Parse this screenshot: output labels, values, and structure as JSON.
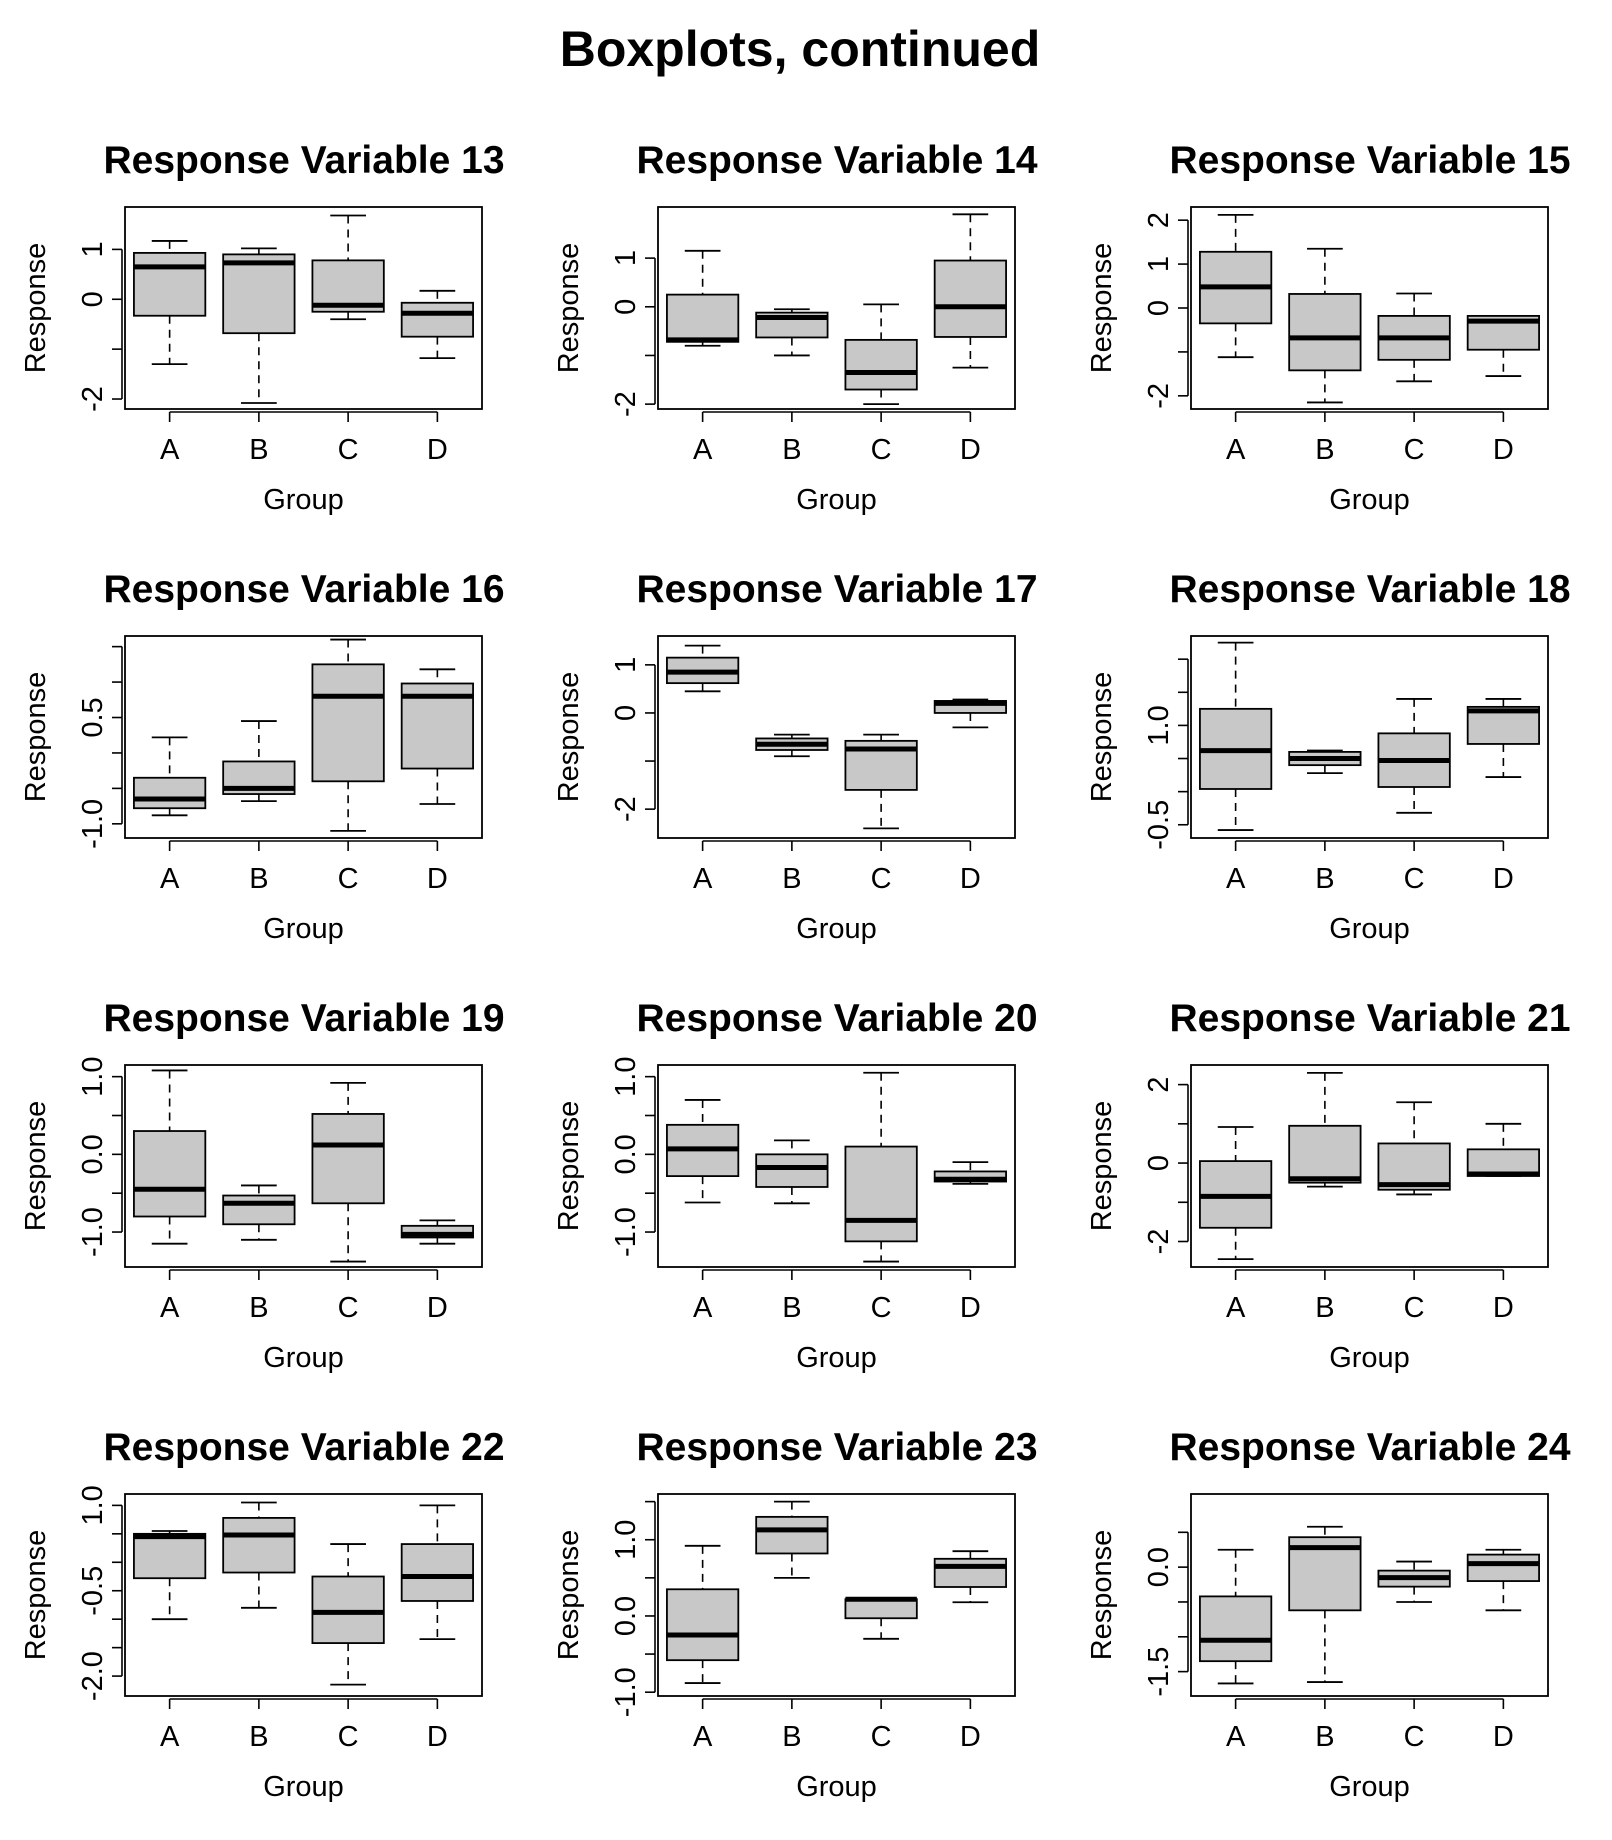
{
  "title": "Boxplots, continued",
  "chart_data": [
    {
      "type": "boxplot",
      "title": "Response Variable 13",
      "xlabel": "Group",
      "ylabel": "Response",
      "categories": [
        "A",
        "B",
        "C",
        "D"
      ],
      "ylim": [
        -2.2,
        1.85
      ],
      "yticks": [
        -2,
        -1,
        0,
        1
      ],
      "ytick_labels": [
        "-2",
        "",
        "0",
        "1"
      ],
      "boxes": [
        {
          "group": "A",
          "min": -1.3,
          "q1": -0.33,
          "median": 0.65,
          "q3": 0.93,
          "max": 1.17
        },
        {
          "group": "B",
          "min": -2.08,
          "q1": -0.68,
          "median": 0.73,
          "q3": 0.9,
          "max": 1.02
        },
        {
          "group": "C",
          "min": -0.4,
          "q1": -0.25,
          "median": -0.12,
          "q3": 0.78,
          "max": 1.68
        },
        {
          "group": "D",
          "min": -1.18,
          "q1": -0.75,
          "median": -0.28,
          "q3": -0.07,
          "max": 0.17
        }
      ]
    },
    {
      "type": "boxplot",
      "title": "Response Variable 14",
      "xlabel": "Group",
      "ylabel": "Response",
      "categories": [
        "A",
        "B",
        "C",
        "D"
      ],
      "ylim": [
        -2.1,
        2.05
      ],
      "yticks": [
        -2,
        -1,
        0,
        1
      ],
      "ytick_labels": [
        "-2",
        "",
        "0",
        "1"
      ],
      "boxes": [
        {
          "group": "A",
          "min": -0.8,
          "q1": -0.72,
          "median": -0.68,
          "q3": 0.25,
          "max": 1.15
        },
        {
          "group": "B",
          "min": -1.0,
          "q1": -0.63,
          "median": -0.22,
          "q3": -0.12,
          "max": -0.05
        },
        {
          "group": "C",
          "min": -2.0,
          "q1": -1.7,
          "median": -1.35,
          "q3": -0.68,
          "max": 0.05
        },
        {
          "group": "D",
          "min": -1.25,
          "q1": -0.62,
          "median": 0.0,
          "q3": 0.95,
          "max": 1.9
        }
      ]
    },
    {
      "type": "boxplot",
      "title": "Response Variable 15",
      "xlabel": "Group",
      "ylabel": "Response",
      "categories": [
        "A",
        "B",
        "C",
        "D"
      ],
      "ylim": [
        -2.3,
        2.3
      ],
      "yticks": [
        -2,
        -1,
        0,
        1,
        2
      ],
      "ytick_labels": [
        "-2",
        "",
        "0",
        "1",
        "2"
      ],
      "boxes": [
        {
          "group": "A",
          "min": -1.12,
          "q1": -0.35,
          "median": 0.48,
          "q3": 1.28,
          "max": 2.12
        },
        {
          "group": "B",
          "min": -2.15,
          "q1": -1.42,
          "median": -0.68,
          "q3": 0.32,
          "max": 1.35
        },
        {
          "group": "C",
          "min": -1.67,
          "q1": -1.18,
          "median": -0.68,
          "q3": -0.18,
          "max": 0.33
        },
        {
          "group": "D",
          "min": -1.55,
          "q1": -0.95,
          "median": -0.3,
          "q3": -0.18,
          "max": -0.18
        }
      ]
    },
    {
      "type": "boxplot",
      "title": "Response Variable 16",
      "xlabel": "Group",
      "ylabel": "Response",
      "categories": [
        "A",
        "B",
        "C",
        "D"
      ],
      "ylim": [
        -1.2,
        1.65
      ],
      "yticks": [
        -1.0,
        -0.5,
        0.0,
        0.5,
        1.0,
        1.5
      ],
      "ytick_labels": [
        "-1.0",
        "",
        "",
        "0.5",
        "",
        ""
      ],
      "boxes": [
        {
          "group": "A",
          "min": -0.88,
          "q1": -0.78,
          "median": -0.65,
          "q3": -0.35,
          "max": 0.22
        },
        {
          "group": "B",
          "min": -0.68,
          "q1": -0.58,
          "median": -0.5,
          "q3": -0.12,
          "max": 0.45
        },
        {
          "group": "C",
          "min": -1.1,
          "q1": -0.4,
          "median": 0.8,
          "q3": 1.25,
          "max": 1.6
        },
        {
          "group": "D",
          "min": -0.72,
          "q1": -0.22,
          "median": 0.8,
          "q3": 0.98,
          "max": 1.18
        }
      ]
    },
    {
      "type": "boxplot",
      "title": "Response Variable 17",
      "xlabel": "Group",
      "ylabel": "Response",
      "categories": [
        "A",
        "B",
        "C",
        "D"
      ],
      "ylim": [
        -2.6,
        1.6
      ],
      "yticks": [
        -2,
        -1,
        0,
        1
      ],
      "ytick_labels": [
        "-2",
        "",
        "0",
        "1"
      ],
      "boxes": [
        {
          "group": "A",
          "min": 0.45,
          "q1": 0.62,
          "median": 0.85,
          "q3": 1.15,
          "max": 1.4
        },
        {
          "group": "B",
          "min": -0.9,
          "q1": -0.77,
          "median": -0.65,
          "q3": -0.53,
          "max": -0.45
        },
        {
          "group": "C",
          "min": -2.4,
          "q1": -1.6,
          "median": -0.75,
          "q3": -0.58,
          "max": -0.45
        },
        {
          "group": "D",
          "min": -0.3,
          "q1": 0.0,
          "median": 0.2,
          "q3": 0.25,
          "max": 0.28
        }
      ]
    },
    {
      "type": "boxplot",
      "title": "Response Variable 18",
      "xlabel": "Group",
      "ylabel": "Response",
      "categories": [
        "A",
        "B",
        "C",
        "D"
      ],
      "ylim": [
        -0.7,
        2.35
      ],
      "yticks": [
        -0.5,
        0.0,
        0.5,
        1.0,
        1.5,
        2.0
      ],
      "ytick_labels": [
        "-0.5",
        "",
        "",
        "1.0",
        "",
        ""
      ],
      "boxes": [
        {
          "group": "A",
          "min": -0.58,
          "q1": 0.04,
          "median": 0.62,
          "q3": 1.25,
          "max": 2.25
        },
        {
          "group": "B",
          "min": 0.28,
          "q1": 0.4,
          "median": 0.5,
          "q3": 0.6,
          "max": 0.62
        },
        {
          "group": "C",
          "min": -0.32,
          "q1": 0.07,
          "median": 0.47,
          "q3": 0.88,
          "max": 1.4
        },
        {
          "group": "D",
          "min": 0.22,
          "q1": 0.72,
          "median": 1.22,
          "q3": 1.28,
          "max": 1.4
        }
      ]
    },
    {
      "type": "boxplot",
      "title": "Response Variable 19",
      "xlabel": "Group",
      "ylabel": "Response",
      "categories": [
        "A",
        "B",
        "C",
        "D"
      ],
      "ylim": [
        -1.45,
        1.15
      ],
      "yticks": [
        -1.0,
        -0.5,
        0.0,
        0.5,
        1.0
      ],
      "ytick_labels": [
        "-1.0",
        "",
        "0.0",
        "",
        "1.0"
      ],
      "boxes": [
        {
          "group": "A",
          "min": -1.15,
          "q1": -0.8,
          "median": -0.45,
          "q3": 0.3,
          "max": 1.08
        },
        {
          "group": "B",
          "min": -1.1,
          "q1": -0.9,
          "median": -0.63,
          "q3": -0.53,
          "max": -0.4
        },
        {
          "group": "C",
          "min": -1.38,
          "q1": -0.63,
          "median": 0.12,
          "q3": 0.52,
          "max": 0.92
        },
        {
          "group": "D",
          "min": -1.15,
          "q1": -1.07,
          "median": -1.03,
          "q3": -0.92,
          "max": -0.85
        }
      ]
    },
    {
      "type": "boxplot",
      "title": "Response Variable 20",
      "xlabel": "Group",
      "ylabel": "Response",
      "categories": [
        "A",
        "B",
        "C",
        "D"
      ],
      "ylim": [
        -1.45,
        1.15
      ],
      "yticks": [
        -1.0,
        -0.5,
        0.0,
        0.5,
        1.0
      ],
      "ytick_labels": [
        "-1.0",
        "",
        "0.0",
        "",
        "1.0"
      ],
      "boxes": [
        {
          "group": "A",
          "min": -0.62,
          "q1": -0.28,
          "median": 0.07,
          "q3": 0.38,
          "max": 0.7
        },
        {
          "group": "B",
          "min": -0.63,
          "q1": -0.42,
          "median": -0.17,
          "q3": 0.0,
          "max": 0.18
        },
        {
          "group": "C",
          "min": -1.38,
          "q1": -1.12,
          "median": -0.85,
          "q3": 0.1,
          "max": 1.05
        },
        {
          "group": "D",
          "min": -0.38,
          "q1": -0.35,
          "median": -0.32,
          "q3": -0.22,
          "max": -0.1
        }
      ]
    },
    {
      "type": "boxplot",
      "title": "Response Variable 21",
      "xlabel": "Group",
      "ylabel": "Response",
      "categories": [
        "A",
        "B",
        "C",
        "D"
      ],
      "ylim": [
        -2.65,
        2.5
      ],
      "yticks": [
        -2,
        -1,
        0,
        1,
        2
      ],
      "ytick_labels": [
        "-2",
        "",
        "0",
        "",
        "2"
      ],
      "boxes": [
        {
          "group": "A",
          "min": -2.45,
          "q1": -1.65,
          "median": -0.85,
          "q3": 0.05,
          "max": 0.92
        },
        {
          "group": "B",
          "min": -0.6,
          "q1": -0.5,
          "median": -0.4,
          "q3": 0.95,
          "max": 2.3
        },
        {
          "group": "C",
          "min": -0.8,
          "q1": -0.68,
          "median": -0.55,
          "q3": 0.5,
          "max": 1.55
        },
        {
          "group": "D",
          "min": -0.33,
          "q1": -0.33,
          "median": -0.28,
          "q3": 0.35,
          "max": 1.0
        }
      ]
    },
    {
      "type": "boxplot",
      "title": "Response Variable 22",
      "xlabel": "Group",
      "ylabel": "Response",
      "categories": [
        "A",
        "B",
        "C",
        "D"
      ],
      "ylim": [
        -2.35,
        1.2
      ],
      "yticks": [
        -2.0,
        -1.5,
        -1.0,
        -0.5,
        0.0,
        0.5,
        1.0
      ],
      "ytick_labels": [
        "-2.0",
        "",
        "",
        "-0.5",
        "",
        "",
        "1.0"
      ],
      "boxes": [
        {
          "group": "A",
          "min": -1.0,
          "q1": -0.28,
          "median": 0.45,
          "q3": 0.5,
          "max": 0.55
        },
        {
          "group": "B",
          "min": -0.8,
          "q1": -0.18,
          "median": 0.48,
          "q3": 0.78,
          "max": 1.05
        },
        {
          "group": "C",
          "min": -2.15,
          "q1": -1.42,
          "median": -0.88,
          "q3": -0.25,
          "max": 0.32
        },
        {
          "group": "D",
          "min": -1.35,
          "q1": -0.68,
          "median": -0.25,
          "q3": 0.32,
          "max": 1.0
        }
      ]
    },
    {
      "type": "boxplot",
      "title": "Response Variable 23",
      "xlabel": "Group",
      "ylabel": "Response",
      "categories": [
        "A",
        "B",
        "C",
        "D"
      ],
      "ylim": [
        -1.05,
        1.6
      ],
      "yticks": [
        -1.0,
        -0.5,
        0.0,
        0.5,
        1.0,
        1.5
      ],
      "ytick_labels": [
        "-1.0",
        "",
        "0.0",
        "",
        "1.0",
        ""
      ],
      "boxes": [
        {
          "group": "A",
          "min": -0.88,
          "q1": -0.58,
          "median": -0.25,
          "q3": 0.35,
          "max": 0.92
        },
        {
          "group": "B",
          "min": 0.5,
          "q1": 0.82,
          "median": 1.13,
          "q3": 1.3,
          "max": 1.5
        },
        {
          "group": "C",
          "min": -0.3,
          "q1": -0.03,
          "median": 0.22,
          "q3": 0.22,
          "max": 0.22
        },
        {
          "group": "D",
          "min": 0.18,
          "q1": 0.38,
          "median": 0.65,
          "q3": 0.75,
          "max": 0.85
        }
      ]
    },
    {
      "type": "boxplot",
      "title": "Response Variable 24",
      "xlabel": "Group",
      "ylabel": "Response",
      "categories": [
        "A",
        "B",
        "C",
        "D"
      ],
      "ylim": [
        -1.85,
        1.05
      ],
      "yticks": [
        -1.5,
        -1.0,
        -0.5,
        0.0,
        0.5
      ],
      "ytick_labels": [
        "-1.5",
        "",
        "",
        "0.0",
        ""
      ],
      "boxes": [
        {
          "group": "A",
          "min": -1.67,
          "q1": -1.35,
          "median": -1.05,
          "q3": -0.42,
          "max": 0.25
        },
        {
          "group": "B",
          "min": -1.65,
          "q1": -0.62,
          "median": 0.28,
          "q3": 0.43,
          "max": 0.58
        },
        {
          "group": "C",
          "min": -0.5,
          "q1": -0.28,
          "median": -0.15,
          "q3": -0.05,
          "max": 0.08
        },
        {
          "group": "D",
          "min": -0.62,
          "q1": -0.2,
          "median": 0.05,
          "q3": 0.18,
          "max": 0.25
        }
      ]
    }
  ]
}
